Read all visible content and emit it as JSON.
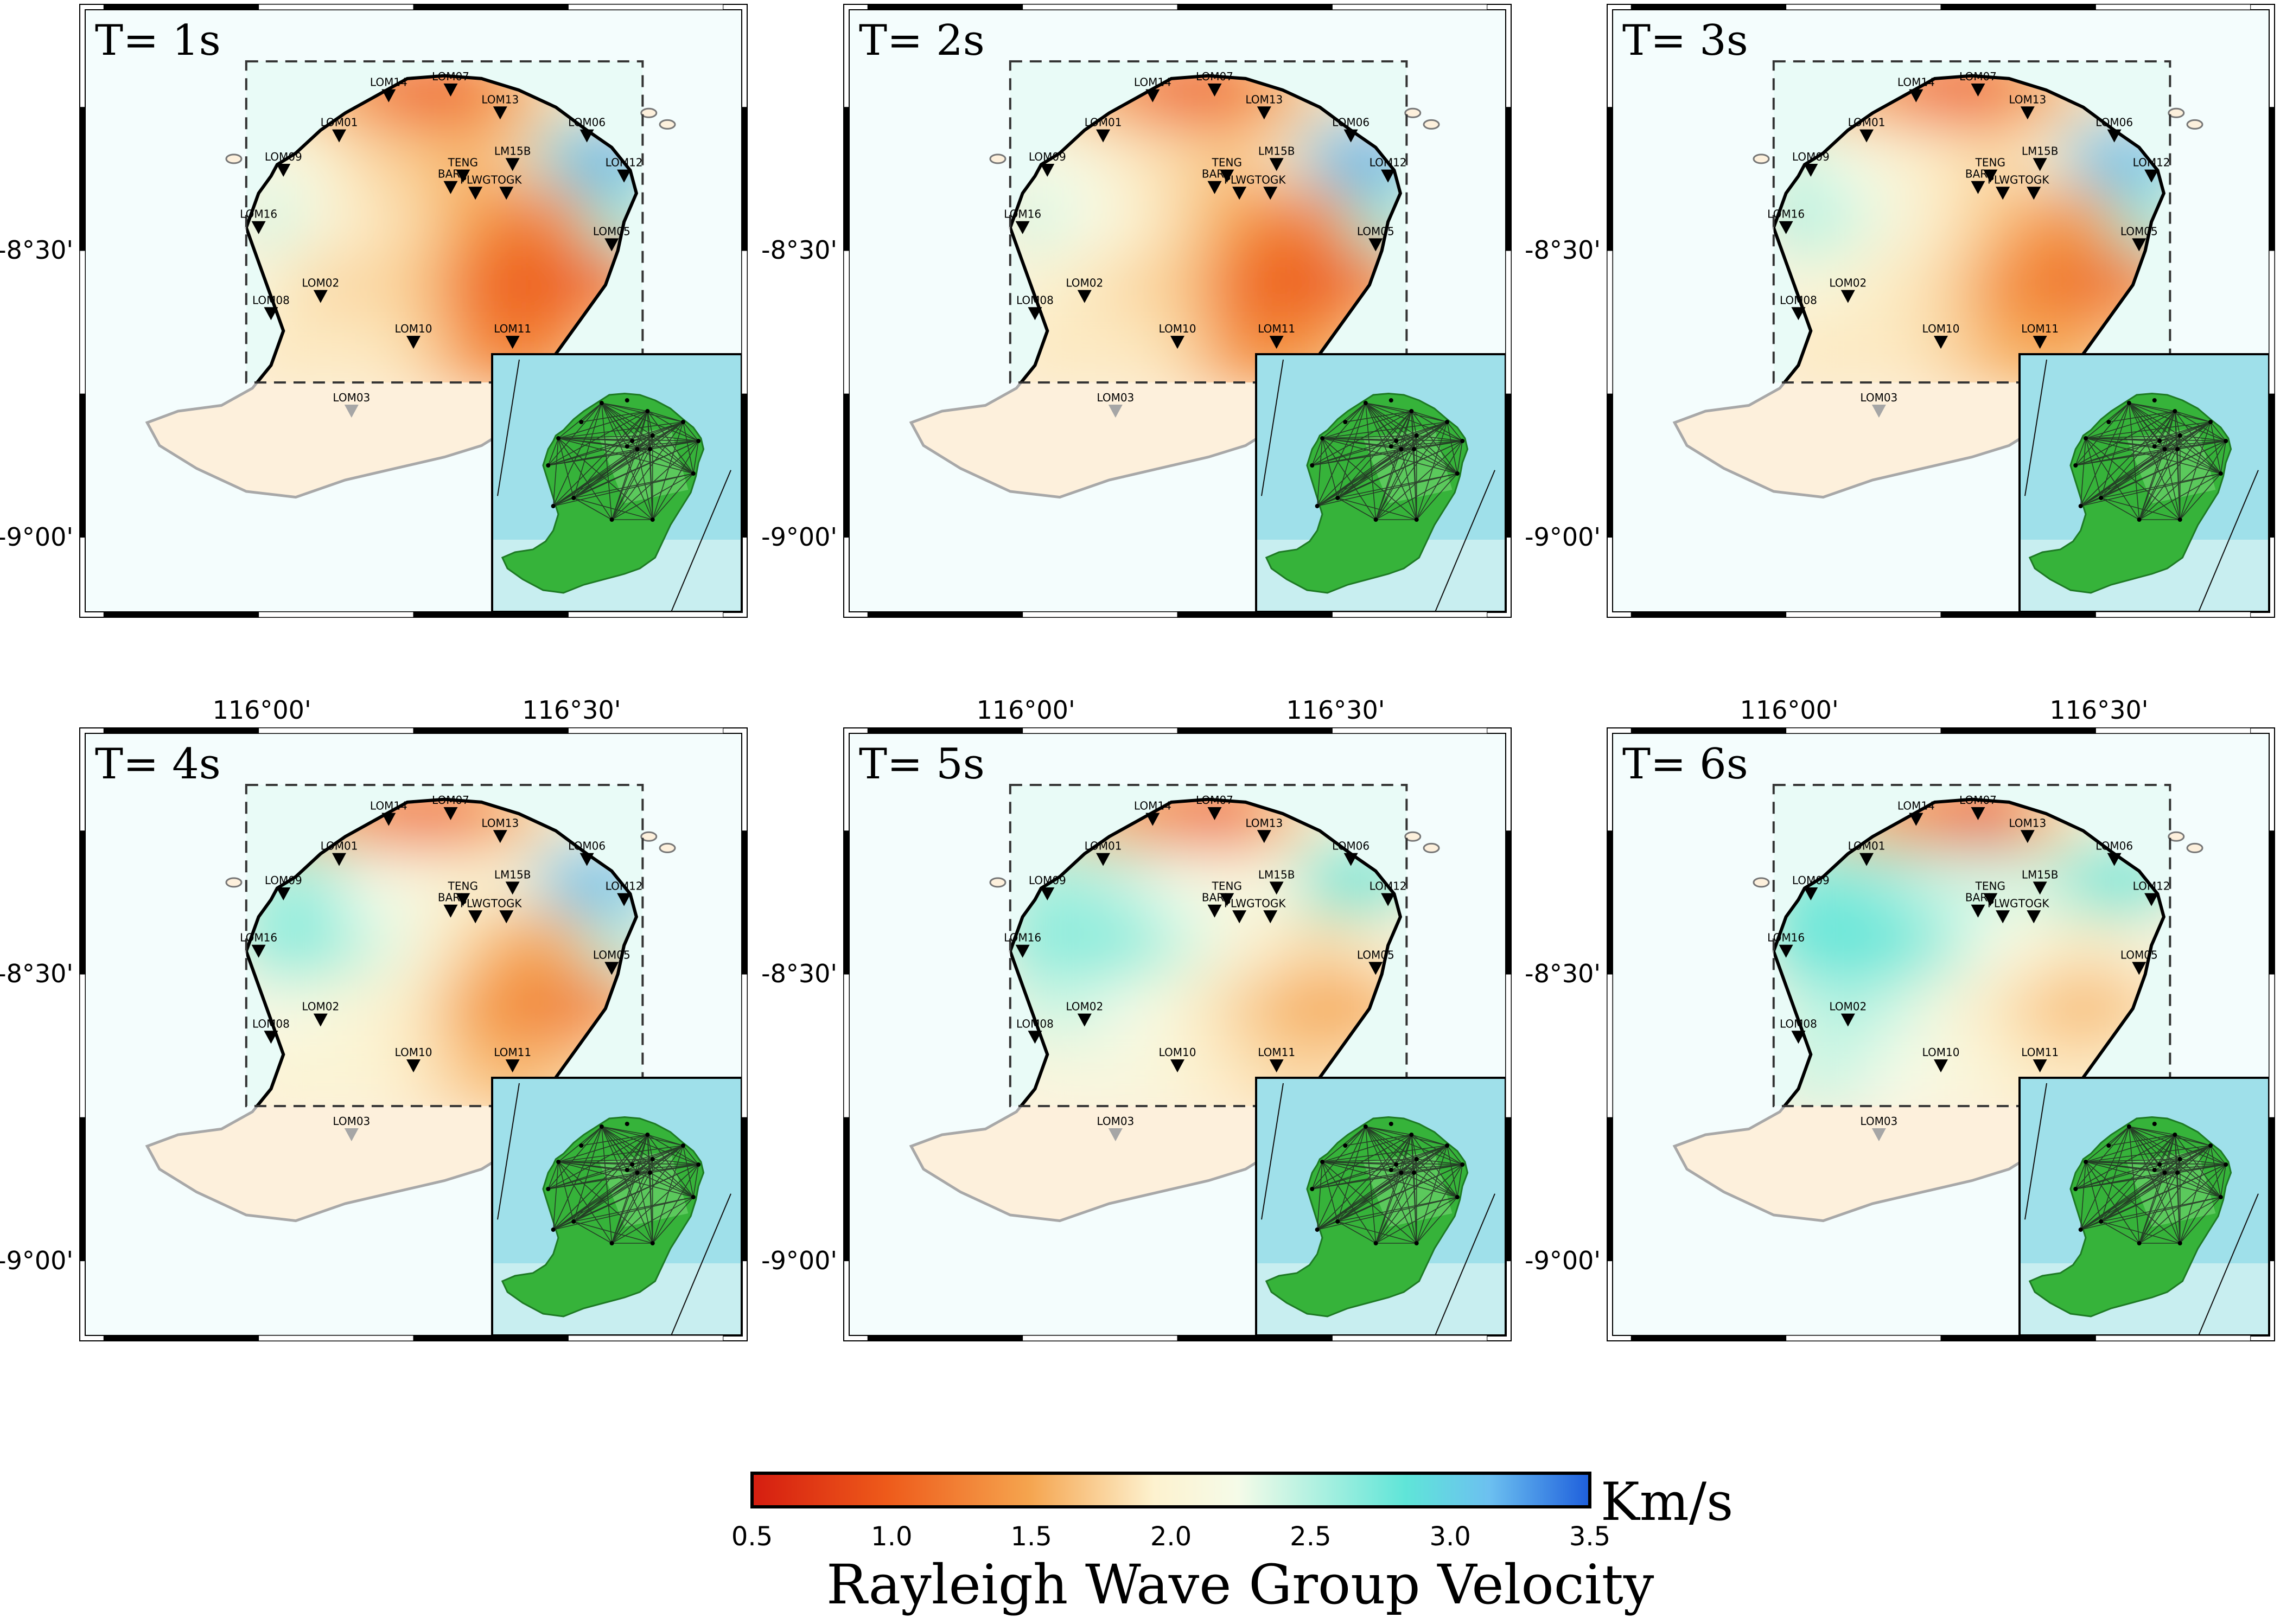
{
  "panels": [
    {
      "label": "T= 1s",
      "field": [
        [
          1.8,
          1.6,
          1.3,
          1.0,
          1.1,
          1.5,
          1.9,
          2.0
        ],
        [
          2.2,
          2.0,
          1.8,
          1.7,
          1.6,
          1.8,
          2.8,
          3.1
        ],
        [
          2.3,
          2.1,
          1.9,
          1.8,
          1.5,
          1.2,
          1.4,
          2.5
        ],
        [
          2.0,
          1.8,
          1.8,
          1.7,
          1.2,
          1.0,
          1.0,
          1.2
        ],
        [
          1.9,
          1.9,
          1.9,
          1.8,
          1.4,
          1.2,
          1.4,
          1.8
        ]
      ]
    },
    {
      "label": "T= 2s",
      "field": [
        [
          1.8,
          1.6,
          1.3,
          1.0,
          1.1,
          1.5,
          1.9,
          2.0
        ],
        [
          2.2,
          2.1,
          1.9,
          1.8,
          1.7,
          1.9,
          2.9,
          3.1
        ],
        [
          2.3,
          2.2,
          2.0,
          1.8,
          1.5,
          1.2,
          1.4,
          2.5
        ],
        [
          2.0,
          1.9,
          1.8,
          1.7,
          1.2,
          1.0,
          1.0,
          1.3
        ],
        [
          1.9,
          1.9,
          1.9,
          1.8,
          1.4,
          1.3,
          1.5,
          1.8
        ]
      ]
    },
    {
      "label": "T= 3s",
      "field": [
        [
          1.8,
          1.6,
          1.3,
          1.0,
          1.1,
          1.5,
          1.9,
          2.0
        ],
        [
          2.3,
          2.2,
          2.0,
          1.9,
          1.8,
          2.0,
          2.9,
          3.0
        ],
        [
          2.4,
          2.3,
          2.1,
          1.9,
          1.7,
          1.4,
          1.5,
          2.5
        ],
        [
          2.1,
          2.0,
          1.9,
          1.8,
          1.4,
          1.2,
          1.1,
          1.3
        ],
        [
          1.9,
          1.9,
          1.9,
          1.8,
          1.6,
          1.5,
          1.6,
          1.8
        ]
      ]
    },
    {
      "label": "T= 4s",
      "field": [
        [
          1.8,
          1.6,
          1.3,
          1.1,
          1.2,
          1.6,
          2.0,
          2.1
        ],
        [
          2.4,
          2.4,
          2.2,
          2.1,
          2.0,
          2.1,
          2.9,
          3.0
        ],
        [
          2.5,
          2.5,
          2.3,
          2.1,
          1.8,
          1.5,
          1.6,
          2.4
        ],
        [
          2.2,
          2.1,
          2.0,
          1.9,
          1.5,
          1.3,
          1.2,
          1.4
        ],
        [
          2.0,
          2.0,
          2.0,
          1.9,
          1.7,
          1.6,
          1.7,
          1.9
        ]
      ]
    },
    {
      "label": "T= 5s",
      "field": [
        [
          2.0,
          1.7,
          1.4,
          1.2,
          1.0,
          1.6,
          2.1,
          2.2
        ],
        [
          2.4,
          2.4,
          2.3,
          2.2,
          2.1,
          2.2,
          2.6,
          2.6
        ],
        [
          2.5,
          2.5,
          2.5,
          2.3,
          2.1,
          1.9,
          1.8,
          2.0
        ],
        [
          2.3,
          2.3,
          2.2,
          2.0,
          1.8,
          1.6,
          1.5,
          1.6
        ],
        [
          2.1,
          2.1,
          2.1,
          2.0,
          1.9,
          1.8,
          1.8,
          1.9
        ]
      ]
    },
    {
      "label": "T= 6s",
      "field": [
        [
          2.0,
          1.7,
          1.4,
          1.2,
          0.9,
          1.6,
          2.1,
          2.2
        ],
        [
          2.5,
          2.5,
          2.4,
          2.3,
          2.3,
          2.3,
          2.6,
          2.6
        ],
        [
          2.6,
          2.6,
          2.6,
          2.4,
          2.2,
          2.0,
          1.9,
          2.1
        ],
        [
          2.3,
          2.4,
          2.3,
          2.1,
          1.9,
          1.7,
          1.6,
          1.8
        ],
        [
          2.3,
          2.3,
          2.2,
          2.1,
          2.0,
          1.9,
          1.9,
          2.0
        ]
      ]
    }
  ],
  "axes": {
    "x_ticks": [
      "116°00'",
      "116°30'"
    ],
    "y_ticks": [
      "-8°30'",
      "-9°00'"
    ]
  },
  "stations": [
    {
      "name": "LOM07",
      "lon": 116.31,
      "lat": -8.22
    },
    {
      "name": "LOM14",
      "lon": 116.21,
      "lat": -8.23
    },
    {
      "name": "LOM13",
      "lon": 116.39,
      "lat": -8.26
    },
    {
      "name": "LOM01",
      "lon": 116.13,
      "lat": -8.3
    },
    {
      "name": "LOM06",
      "lon": 116.53,
      "lat": -8.3
    },
    {
      "name": "LOM09",
      "lon": 116.04,
      "lat": -8.36
    },
    {
      "name": "TENG",
      "lon": 116.33,
      "lat": -8.37
    },
    {
      "name": "LM15B",
      "lon": 116.41,
      "lat": -8.35
    },
    {
      "name": "LOM12",
      "lon": 116.59,
      "lat": -8.37
    },
    {
      "name": "BARI",
      "lon": 116.31,
      "lat": -8.39
    },
    {
      "name": "PLWG",
      "lon": 116.35,
      "lat": -8.4
    },
    {
      "name": "TOGK",
      "lon": 116.4,
      "lat": -8.4
    },
    {
      "name": "LOM16",
      "lon": 116.0,
      "lat": -8.46
    },
    {
      "name": "LOM05",
      "lon": 116.57,
      "lat": -8.49
    },
    {
      "name": "LOM02",
      "lon": 116.1,
      "lat": -8.58
    },
    {
      "name": "LOM08",
      "lon": 116.02,
      "lat": -8.61
    },
    {
      "name": "LOM10",
      "lon": 116.25,
      "lat": -8.66
    },
    {
      "name": "LOM11",
      "lon": 116.41,
      "lat": -8.66
    },
    {
      "name": "LOM03",
      "lon": 116.15,
      "lat": -8.78,
      "muted": true
    }
  ],
  "colorbar": {
    "unit": "Km/s",
    "title": "Rayleigh Wave Group Velocity",
    "ticks": [
      "0.5",
      "1.0",
      "1.5",
      "2.0",
      "2.5",
      "3.0",
      "3.5"
    ],
    "colors": [
      "#d51d10",
      "#ee5a1a",
      "#f5a44e",
      "#fdf2cf",
      "#f5fbe8",
      "#5fe5d8",
      "#6cc0f0",
      "#1e5fdc"
    ]
  }
}
